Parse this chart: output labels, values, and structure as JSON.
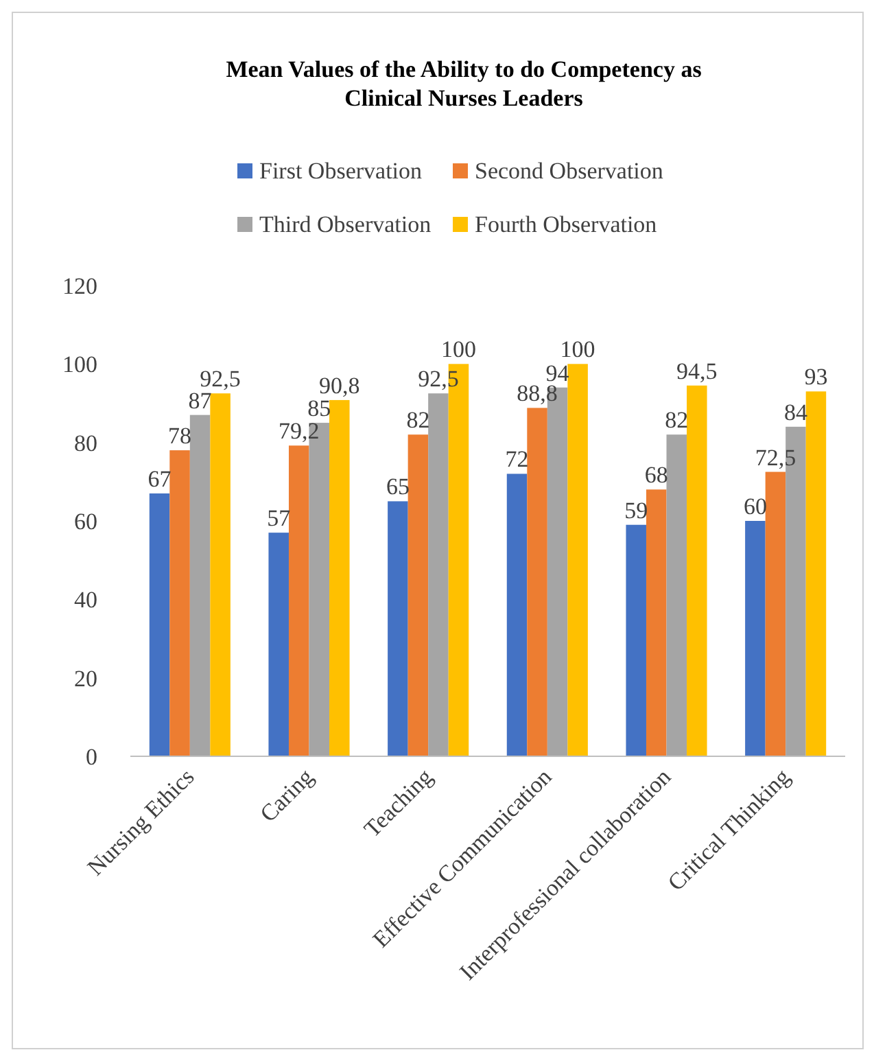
{
  "chart_data": {
    "type": "bar",
    "title": "Mean Values of the Ability to do Competency as Clinical Nurses Leaders",
    "categories": [
      "Nursing Ethics",
      "Caring",
      "Teaching",
      "Effective Communication",
      "Interprofessional collaboration",
      "Critical Thinking"
    ],
    "series": [
      {
        "name": "First Observation",
        "color": "#4472c4",
        "values": [
          67,
          57,
          65,
          72,
          59,
          60
        ],
        "value_labels": [
          "67",
          "57",
          "65",
          "72",
          "59",
          "60"
        ]
      },
      {
        "name": "Second Observation",
        "color": "#ed7d31",
        "values": [
          78,
          79.2,
          82,
          88.8,
          68,
          72.5
        ],
        "value_labels": [
          "78",
          "79,2",
          "82",
          "88,8",
          "68",
          "72,5"
        ]
      },
      {
        "name": "Third Observation",
        "color": "#a5a5a5",
        "values": [
          87,
          85,
          92.5,
          94,
          82,
          84
        ],
        "value_labels": [
          "87",
          "85",
          "92,5",
          "94",
          "82",
          "84"
        ]
      },
      {
        "name": "Fourth Observation",
        "color": "#ffc000",
        "values": [
          92.5,
          90.8,
          100,
          100,
          94.5,
          93
        ],
        "value_labels": [
          "92,5",
          "90,8",
          "100",
          "100",
          "94,5",
          "93"
        ]
      }
    ],
    "ylim": [
      0,
      120
    ],
    "yticks": [
      0,
      20,
      40,
      60,
      80,
      100,
      120
    ],
    "grid": false,
    "legend": "top"
  }
}
